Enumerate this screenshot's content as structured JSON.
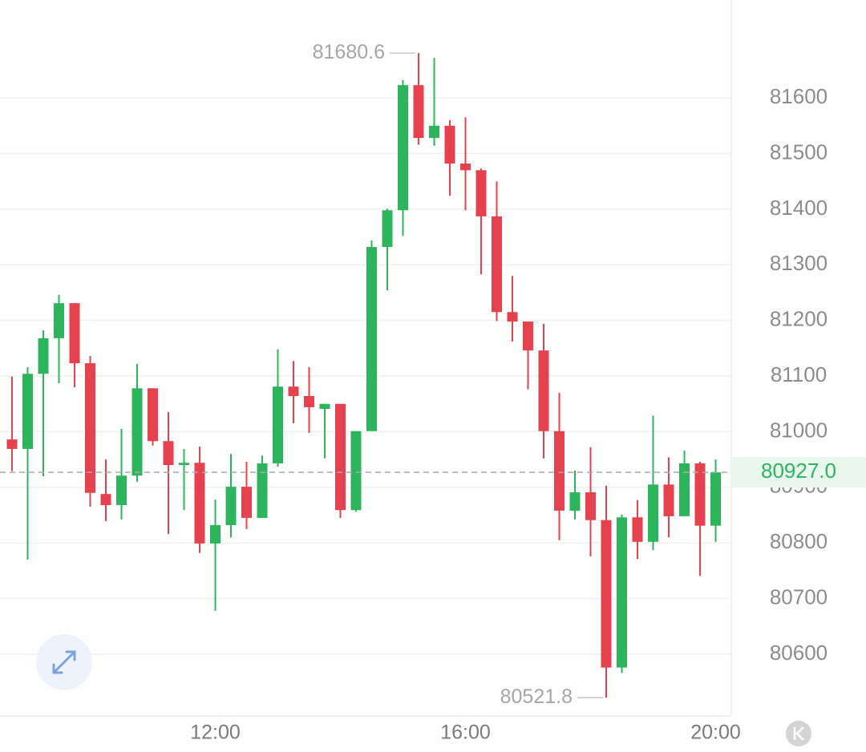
{
  "chart_data": {
    "type": "candlestick",
    "categories": [
      null,
      null,
      null,
      null,
      null,
      null,
      null,
      null,
      null,
      null,
      null,
      null,
      null,
      "12:00",
      null,
      null,
      null,
      null,
      null,
      null,
      null,
      null,
      null,
      null,
      null,
      null,
      null,
      null,
      null,
      "16:00",
      null,
      null,
      null,
      null,
      null,
      null,
      null,
      null,
      null,
      null,
      null,
      null,
      null,
      null,
      null,
      "20:00"
    ],
    "open": [
      80986,
      80969,
      81104,
      81168,
      81231,
      81123,
      80888,
      80868,
      80921,
      81078,
      80983,
      80940,
      80944,
      80799,
      80832,
      80901,
      80845,
      80943,
      81081,
      81064,
      81041,
      81050,
      80859,
      81001,
      81332,
      81398,
      81623,
      81528,
      81550,
      81482,
      81470,
      81387,
      81215,
      81198,
      81146,
      81001,
      80858,
      80891,
      80841,
      80576,
      80846,
      80802,
      80905,
      80848,
      80943,
      80831
    ],
    "high": [
      81099,
      81116,
      81182,
      81246,
      81231,
      81136,
      80950,
      81005,
      81122,
      81078,
      81035,
      80969,
      80973,
      80878,
      80960,
      80946,
      80957,
      81148,
      81127,
      81116,
      81050,
      81050,
      81001,
      81344,
      81401,
      81632,
      81680.6,
      81672,
      81560,
      81565,
      81473,
      81450,
      81280,
      81198,
      81194,
      81070,
      80930,
      80972,
      80903,
      80851,
      80877,
      81029,
      80954,
      80966,
      80946,
      80950
    ],
    "low": [
      80929,
      80770,
      80920,
      81087,
      81080,
      80865,
      80839,
      80842,
      80910,
      80975,
      80816,
      80859,
      80782,
      80678,
      80810,
      80825,
      80845,
      80937,
      81015,
      80998,
      80952,
      80845,
      80856,
      81001,
      81254,
      81352,
      81516,
      81514,
      81424,
      81398,
      81283,
      81199,
      81162,
      81076,
      80952,
      80805,
      80842,
      80776,
      80521.8,
      80566,
      80771,
      80787,
      80810,
      80848,
      80741,
      80802
    ],
    "close": [
      80969,
      81104,
      81168,
      81231,
      81123,
      80890,
      80868,
      80921,
      81078,
      80983,
      80940,
      80944,
      80799,
      80832,
      80901,
      80845,
      80943,
      81081,
      81064,
      81044,
      81050,
      80859,
      81001,
      81332,
      81398,
      81623,
      81528,
      81550,
      81482,
      81470,
      81387,
      81215,
      81198,
      81146,
      81001,
      80858,
      80891,
      80841,
      80576,
      80846,
      80802,
      80905,
      80848,
      80943,
      80831,
      80927
    ],
    "up_color": "#2db55d",
    "down_color": "#e5414e",
    "ylim": [
      80489,
      81776
    ],
    "yticks": [
      80600,
      80700,
      80800,
      80900,
      81000,
      81100,
      81200,
      81300,
      81400,
      81500,
      81600
    ],
    "grid": true,
    "last_price": {
      "value": 80927,
      "label": "80927.0"
    }
  }
}
